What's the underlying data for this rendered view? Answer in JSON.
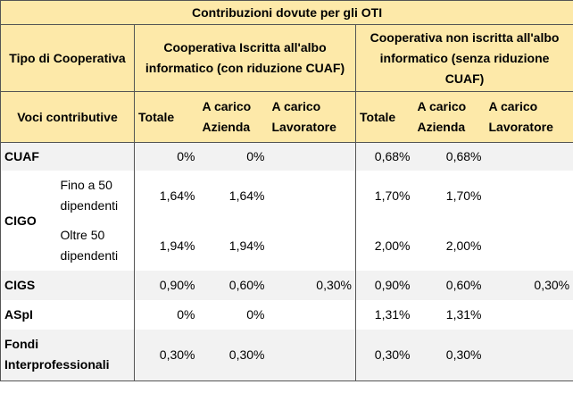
{
  "table": {
    "title": "Contribuzioni dovute per gli OTI",
    "col_tipo": "Tipo di Cooperativa",
    "coop_iscritta": "Cooperativa Iscritta all'albo informatico (con riduzione CUAF)",
    "coop_non_iscritta": "Cooperativa non iscritta all'albo informatico (senza riduzione CUAF)",
    "voci_label": "Voci contributive",
    "sub_headers": {
      "totale": "Totale",
      "azienda": "A carico Azienda",
      "lavoratore": "A carico Lavoratore"
    },
    "rows": {
      "cuaf": {
        "label": "CUAF",
        "i_tot": "0%",
        "i_az": "0%",
        "i_lav": "",
        "n_tot": "0,68%",
        "n_az": "0,68%",
        "n_lav": ""
      },
      "cigo": {
        "label": "CIGO",
        "fino": {
          "label": "Fino a 50 dipendenti",
          "i_tot": "1,64%",
          "i_az": "1,64%",
          "i_lav": "",
          "n_tot": "1,70%",
          "n_az": "1,70%",
          "n_lav": ""
        },
        "oltre": {
          "label": "Oltre 50 dipendenti",
          "i_tot": "1,94%",
          "i_az": "1,94%",
          "i_lav": "",
          "n_tot": "2,00%",
          "n_az": "2,00%",
          "n_lav": ""
        }
      },
      "cigs": {
        "label": "CIGS",
        "i_tot": "0,90%",
        "i_az": "0,60%",
        "i_lav": "0,30%",
        "n_tot": "0,90%",
        "n_az": "0,60%",
        "n_lav": "0,30%"
      },
      "aspi": {
        "label": "ASpI",
        "i_tot": "0%",
        "i_az": "0%",
        "i_lav": "",
        "n_tot": "1,31%",
        "n_az": "1,31%",
        "n_lav": ""
      },
      "fondi": {
        "label": "Fondi Interprofessionali",
        "i_tot": "0,30%",
        "i_az": "0,30%",
        "i_lav": "",
        "n_tot": "0,30%",
        "n_az": "0,30%",
        "n_lav": ""
      }
    }
  }
}
